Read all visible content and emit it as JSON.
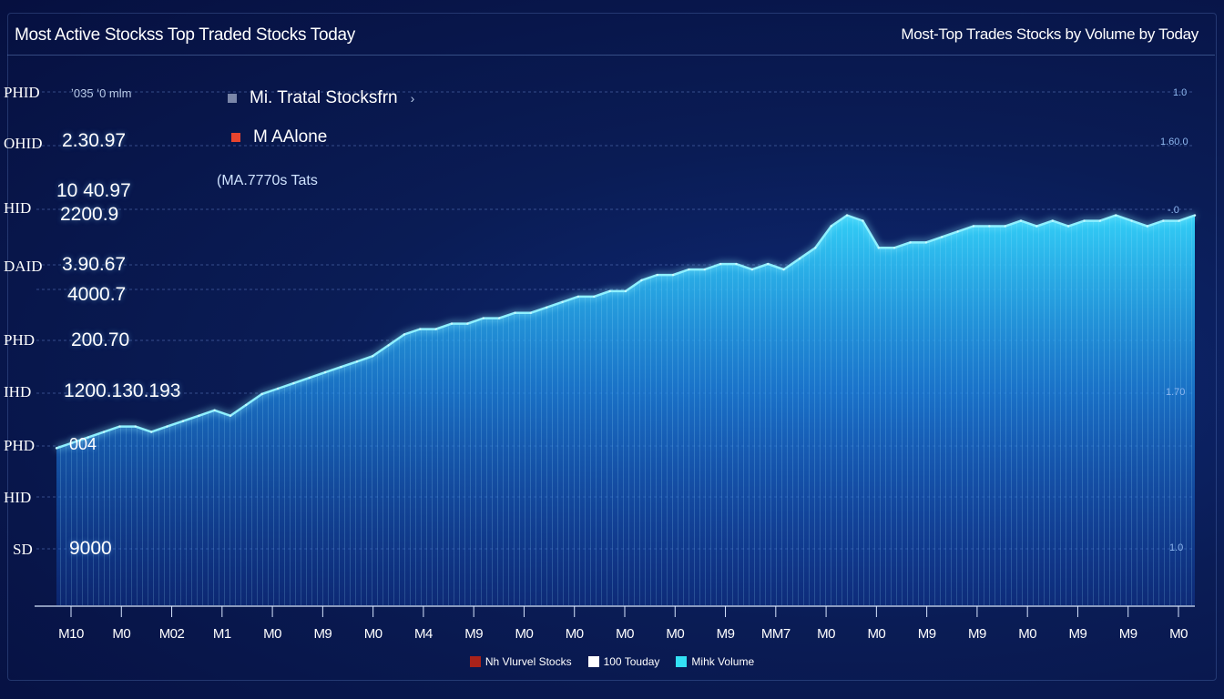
{
  "header": {
    "title": "Most Active Stockss Top Traded Stocks Today",
    "subtitle": "Most-Top Trades Stocks by Volume by Today"
  },
  "top_legend": {
    "items": [
      {
        "label": "Mi. Tratal Stocksfrn",
        "marker": "›",
        "color": "#7a86a8"
      },
      {
        "label": "M AAlone",
        "color": "#e8442e"
      }
    ],
    "note": "(MA.7770s Tats"
  },
  "y_axis_left": {
    "header_text": "ʼ035 ʻ0 mlm",
    "labels": [
      "PHID",
      "OHID",
      "HID",
      "DAID",
      "PHD",
      "IHD",
      "PHD",
      "HID",
      "SD"
    ]
  },
  "value_labels": [
    "2.30.97",
    "10 40.97",
    "2200.9",
    "3.90.67",
    "4000.7",
    "200.70",
    "1200.130.193",
    "004",
    "9000"
  ],
  "right_labels": [
    "1.0",
    "1.60.0",
    "-.0",
    "1.70",
    "1.0"
  ],
  "bottom_legend": [
    {
      "label": "Nh Vlurvel Stocks",
      "color": "#a8221a"
    },
    {
      "label": "100 Touday",
      "color": "#ffffff"
    },
    {
      "label": "Mihk Volume",
      "color": "#33e0f5"
    }
  ],
  "colors": {
    "background": "#07123a",
    "area_top": "#35d8ff",
    "area_bottom": "#1446b8",
    "grid": "#6f8fd8"
  },
  "chart_data": {
    "type": "area",
    "title": "Most Active Stockss Top Traded Stocks Today",
    "xlabel": "",
    "ylabel": "",
    "categories": [
      "M10",
      "M0",
      "M02",
      "M1",
      "M0",
      "M9",
      "M0",
      "M4",
      "M9",
      "M0",
      "M0",
      "M0",
      "M0",
      "M9",
      "MM7",
      "M0",
      "M0",
      "M9",
      "M9",
      "M0",
      "M9",
      "M9",
      "M0"
    ],
    "ylim": [
      0,
      100
    ],
    "grid": true,
    "legend": "bottom-center",
    "series": [
      {
        "name": "Mihk Volume",
        "x": [
          0,
          1,
          2,
          3,
          4,
          5,
          6,
          7,
          8,
          9,
          10,
          11,
          12,
          13,
          14,
          15,
          16,
          17,
          18,
          19,
          20,
          21,
          22,
          23,
          24,
          25,
          26,
          27,
          28,
          29,
          30,
          31,
          32,
          33,
          34,
          35,
          36,
          37,
          38,
          39,
          40,
          41,
          42,
          43,
          44,
          45,
          46,
          47,
          48,
          49,
          50,
          51,
          52,
          53,
          54,
          55,
          56,
          57,
          58,
          59,
          60,
          61,
          62,
          63,
          64,
          65,
          66,
          67,
          68,
          69,
          70,
          71,
          72
        ],
        "values": [
          29,
          30,
          31,
          32,
          33,
          33,
          32,
          33,
          34,
          35,
          36,
          35,
          37,
          39,
          40,
          41,
          42,
          43,
          44,
          45,
          46,
          48,
          50,
          51,
          51,
          52,
          52,
          53,
          53,
          54,
          54,
          55,
          56,
          57,
          57,
          58,
          58,
          60,
          61,
          61,
          62,
          62,
          63,
          63,
          62,
          63,
          62,
          64,
          66,
          70,
          72,
          71,
          66,
          66,
          67,
          67,
          68,
          69,
          70,
          70,
          70,
          71,
          70,
          71,
          70,
          71,
          71,
          72,
          71,
          70,
          71,
          71,
          72
        ]
      }
    ]
  }
}
